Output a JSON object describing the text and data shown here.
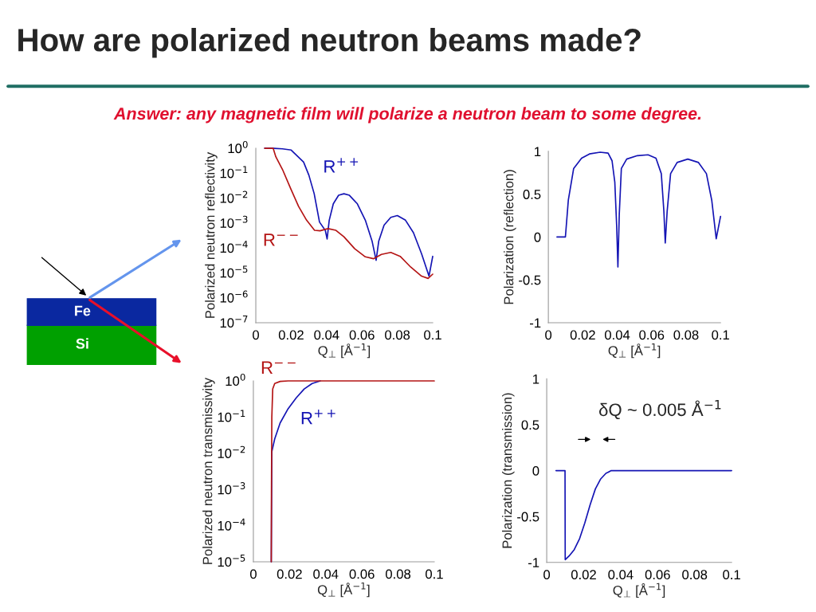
{
  "chart_data": [
    {
      "type": "line",
      "title": "How are polarized neutron beams made?",
      "subtitle": "Answer: any magnetic film will polarize a neutron beam to some degree.",
      "xlabel": "Q$_{⊥}$ [Å$^{−1}$]",
      "ylabel": "Polarized neutron reflectivity",
      "log": "y",
      "xlim": [
        0,
        0.1
      ],
      "xticks": [
        0,
        0.02,
        0.04,
        0.06,
        0.08,
        0.1
      ],
      "ylim": [
        1e-07,
        1
      ],
      "yticks": [
        {
          "value": 1e-07,
          "label": "10$^{−7}$"
        },
        {
          "value": 1e-06,
          "label": "10$^{−6}$"
        },
        {
          "value": 1e-05,
          "label": "10$^{−5}$"
        },
        {
          "value": 0.0001,
          "label": "10$^{−4}$"
        },
        {
          "value": 0.001,
          "label": "10$^{−3}$"
        },
        {
          "value": 0.01,
          "label": "10$^{−2}$"
        },
        {
          "value": 0.1,
          "label": "10$^{−1}$"
        },
        {
          "value": 1,
          "label": "10$^{0}$"
        }
      ],
      "series": [
        {
          "name": "R$^{++}$",
          "color": "#1414b4",
          "x": [
            0.005,
            0.01,
            0.015,
            0.02,
            0.027,
            0.03,
            0.033,
            0.036,
            0.0393,
            0.0403,
            0.0415,
            0.0438,
            0.0468,
            0.0498,
            0.0529,
            0.0574,
            0.0619,
            0.0657,
            0.068,
            0.0695,
            0.0725,
            0.0763,
            0.08,
            0.0846,
            0.0891,
            0.0937,
            0.0979,
            0.1
          ],
          "values": [
            1,
            1,
            0.95,
            0.85,
            0.28,
            0.083,
            0.015,
            0.0011,
            0.0005,
            0.00023,
            0.0013,
            0.0059,
            0.013,
            0.015,
            0.013,
            0.0059,
            0.0013,
            0.00019,
            3.2e-05,
            0.00019,
            0.00083,
            0.0017,
            0.002,
            0.0013,
            0.00041,
            5.8e-05,
            7.4e-06,
            4.6e-05
          ]
        },
        {
          "name": "R$^{−−}$",
          "color": "#b41414",
          "x": [
            0.005,
            0.0098,
            0.0113,
            0.0151,
            0.0196,
            0.0242,
            0.0287,
            0.0332,
            0.0363,
            0.0408,
            0.0453,
            0.0498,
            0.0559,
            0.0619,
            0.0665,
            0.071,
            0.0763,
            0.0816,
            0.0876,
            0.0937,
            0.0974,
            0.1
          ],
          "values": [
            1,
            1,
            0.46,
            0.14,
            0.025,
            0.0046,
            0.0013,
            0.00051,
            0.00049,
            0.0006,
            0.00051,
            0.00028,
            9.3e-05,
            4.4e-05,
            3.7e-05,
            5.5e-05,
            6.6e-05,
            4.6e-05,
            1.7e-05,
            7.4e-06,
            6e-06,
            8.9e-06
          ]
        }
      ]
    },
    {
      "type": "line",
      "xlabel": "Q$_{⊥}$ [Å$^{−1}$]",
      "ylabel": "Polarization (reflection)",
      "xlim": [
        0,
        0.1
      ],
      "xticks": [
        0,
        0.02,
        0.04,
        0.06,
        0.08,
        0.1
      ],
      "ylim": [
        -1,
        1
      ],
      "yticks": [
        -1,
        -0.5,
        0,
        0.5,
        1
      ],
      "series": [
        {
          "color": "#1414b4",
          "x": [
            0.005,
            0.0099,
            0.0116,
            0.0147,
            0.0193,
            0.0239,
            0.0301,
            0.0347,
            0.037,
            0.0386,
            0.0397,
            0.0404,
            0.0412,
            0.0424,
            0.0455,
            0.0517,
            0.0579,
            0.0625,
            0.0656,
            0.0671,
            0.0679,
            0.069,
            0.071,
            0.0748,
            0.081,
            0.0872,
            0.0918,
            0.0949,
            0.0975,
            0.1
          ],
          "values": [
            0,
            0,
            0.43,
            0.8,
            0.92,
            0.97,
            0.99,
            0.98,
            0.89,
            0.64,
            0.12,
            -0.35,
            0.27,
            0.8,
            0.91,
            0.95,
            0.96,
            0.92,
            0.74,
            0.3,
            -0.07,
            0.3,
            0.74,
            0.87,
            0.91,
            0.87,
            0.74,
            0.43,
            -0.02,
            0.24
          ]
        }
      ]
    },
    {
      "type": "line",
      "xlabel": "Q$_{⊥}$ [Å$^{−1}$]",
      "ylabel": "Polarized neutron transmissivity",
      "log": "y",
      "xlim": [
        0,
        0.1
      ],
      "xticks": [
        0,
        0.02,
        0.04,
        0.06,
        0.08,
        0.1
      ],
      "ylim": [
        1e-05,
        1
      ],
      "yticks": [
        {
          "value": 1e-05,
          "label": "10$^{−5}$"
        },
        {
          "value": 0.0001,
          "label": "10$^{−4}$"
        },
        {
          "value": 0.001,
          "label": "10$^{−3}$"
        },
        {
          "value": 0.01,
          "label": "10$^{−2}$"
        },
        {
          "value": 0.1,
          "label": "10$^{−1}$"
        },
        {
          "value": 1,
          "label": "10$^{0}$"
        }
      ],
      "series": [
        {
          "name": "R$^{++}$",
          "color": "#1414b4",
          "x": [
            0.0099,
            0.0102,
            0.0118,
            0.0148,
            0.0192,
            0.0237,
            0.0281,
            0.0325,
            0.037
          ],
          "values": [
            1e-05,
            0.011,
            0.025,
            0.069,
            0.17,
            0.34,
            0.6,
            0.85,
            1
          ]
        },
        {
          "name": "R$^{−−}$",
          "color": "#b41414",
          "x": [
            0.0099,
            0.01,
            0.0102,
            0.0107,
            0.0118,
            0.0148,
            0.0192,
            0.1
          ],
          "values": [
            1e-05,
            0.001,
            0.1,
            0.6,
            0.85,
            0.97,
            1,
            1
          ]
        }
      ]
    },
    {
      "type": "line",
      "xlabel": "Q$_{⊥}$ [Å$^{−1}$]",
      "ylabel": "Polarization (transmission)",
      "xlim": [
        0,
        0.1
      ],
      "xticks": [
        0,
        0.02,
        0.04,
        0.06,
        0.08,
        0.1
      ],
      "ylim": [
        -1,
        1
      ],
      "yticks": [
        -1,
        -0.5,
        0,
        0.5,
        1
      ],
      "annotations": [
        "δQ ~ 0.005 Å$^{−1}$"
      ],
      "series": [
        {
          "color": "#1414b4",
          "x": [
            0.005,
            0.0099,
            0.01,
            0.0121,
            0.0149,
            0.0178,
            0.0206,
            0.0235,
            0.0263,
            0.0292,
            0.032,
            0.0349,
            0.0391,
            0.1
          ],
          "values": [
            0,
            0,
            -0.97,
            -0.93,
            -0.86,
            -0.74,
            -0.57,
            -0.37,
            -0.2,
            -0.09,
            -0.03,
            0,
            0,
            0
          ]
        }
      ]
    },
    {
      "type": "other",
      "annotations": [
        "Fe",
        "Si"
      ]
    }
  ]
}
